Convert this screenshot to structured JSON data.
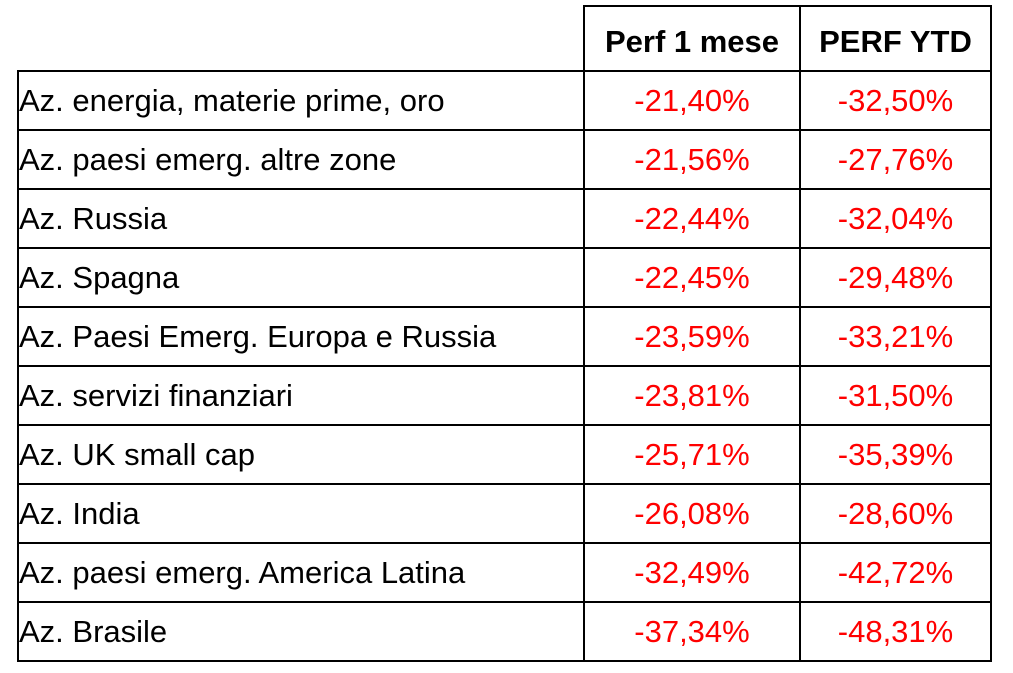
{
  "table": {
    "headers": {
      "corner": "",
      "month": "Perf 1 mese",
      "ytd": "PERF YTD"
    },
    "rows": [
      {
        "label": "Az. energia, materie prime, oro",
        "month": "-21,40%",
        "ytd": "-32,50%"
      },
      {
        "label": "Az. paesi emerg. altre zone",
        "month": "-21,56%",
        "ytd": "-27,76%"
      },
      {
        "label": "Az. Russia",
        "month": "-22,44%",
        "ytd": "-32,04%"
      },
      {
        "label": "Az. Spagna",
        "month": "-22,45%",
        "ytd": "-29,48%"
      },
      {
        "label": "Az. Paesi Emerg. Europa e Russia",
        "month": "-23,59%",
        "ytd": "-33,21%"
      },
      {
        "label": "Az. servizi finanziari",
        "month": "-23,81%",
        "ytd": "-31,50%"
      },
      {
        "label": "Az. UK small cap",
        "month": "-25,71%",
        "ytd": "-35,39%"
      },
      {
        "label": "Az. India",
        "month": "-26,08%",
        "ytd": "-28,60%"
      },
      {
        "label": "Az. paesi emerg. America Latina",
        "month": "-32,49%",
        "ytd": "-42,72%"
      },
      {
        "label": "Az. Brasile",
        "month": "-37,34%",
        "ytd": "-48,31%"
      }
    ]
  },
  "colors": {
    "value_text": "#ff0000",
    "label_text": "#000000",
    "border": "#000000"
  }
}
